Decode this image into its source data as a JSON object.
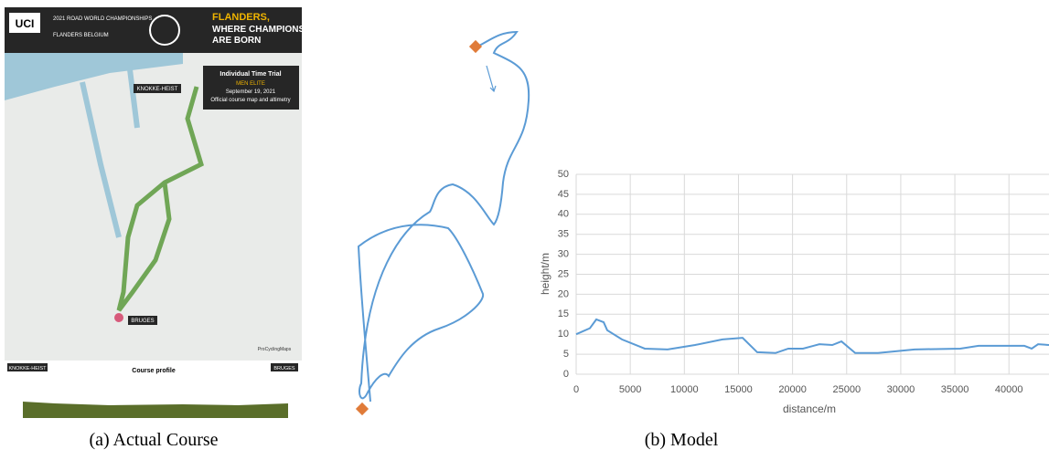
{
  "map": {
    "badge": "UCI",
    "championship": "2021 ROAD WORLD CHAMPIONSHIPS",
    "host": "FLANDERS BELGIUM",
    "slogan_1": "FLANDERS,",
    "slogan_2": "WHERE CHAMPIONS",
    "slogan_3": "ARE BORN",
    "event": "Individual Time Trial",
    "category": "MEN ELITE",
    "date": "September 19, 2021",
    "subtitle": "Official course map and altimetry",
    "start": "KNOKKE-HEIST",
    "finish": "BRUGES",
    "profile_title": "Course profile",
    "profile_start": "KNOKKE-HEIST",
    "profile_finish": "BRUGES",
    "credit": "ProCyclingMaps"
  },
  "captions": [
    "(a) Actual Course",
    "(b) Model"
  ],
  "chart_data": {
    "type": "line",
    "x_label": "distance/m",
    "y_label": "height/m",
    "x": [
      0,
      1270,
      1860,
      2540,
      2870,
      4230,
      6340,
      8450,
      10990,
      13520,
      15380,
      16730,
      18420,
      19610,
      20960,
      22480,
      23670,
      24520,
      25790,
      27900,
      31280,
      35500,
      37190,
      41420,
      42100,
      42690,
      43700
    ],
    "series": [
      {
        "color": "#5b9bd5",
        "values": [
          10,
          11.5,
          13.7,
          13,
          11,
          8.7,
          6.4,
          6.2,
          7.3,
          8.7,
          9.1,
          5.5,
          5.3,
          6.4,
          6.4,
          7.5,
          7.3,
          8.2,
          5.3,
          5.3,
          6.2,
          6.4,
          7.1,
          7.1,
          6.4,
          7.5,
          7.3
        ]
      }
    ],
    "xlim": [
      0,
      43700
    ],
    "ylim": [
      0,
      50
    ],
    "xticks": [
      0,
      5000,
      10000,
      15000,
      20000,
      25000,
      30000,
      35000,
      40000
    ],
    "yticks": [
      0,
      5,
      10,
      15,
      20,
      25,
      30,
      35,
      40,
      45,
      50
    ],
    "grid": true
  }
}
